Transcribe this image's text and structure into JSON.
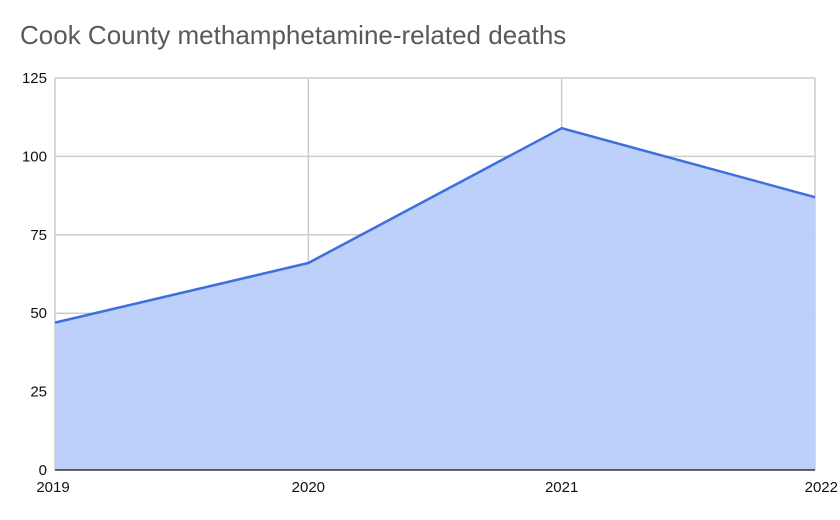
{
  "chart_data": {
    "type": "area",
    "title": "Cook County methamphetamine-related deaths",
    "xlabel": "",
    "ylabel": "",
    "categories": [
      "2019",
      "2020",
      "2021",
      "2022"
    ],
    "series": [
      {
        "values": [
          47,
          66,
          109,
          87
        ]
      }
    ],
    "ylim": [
      0,
      125
    ],
    "yticks": [
      0,
      25,
      50,
      75,
      100,
      125
    ],
    "grid": true,
    "legend": "none",
    "colors": {
      "line": "#3d6fe0",
      "fill": "#b8cdfa",
      "grid": "#cccccc",
      "axis": "#333333",
      "title": "#595959"
    }
  }
}
